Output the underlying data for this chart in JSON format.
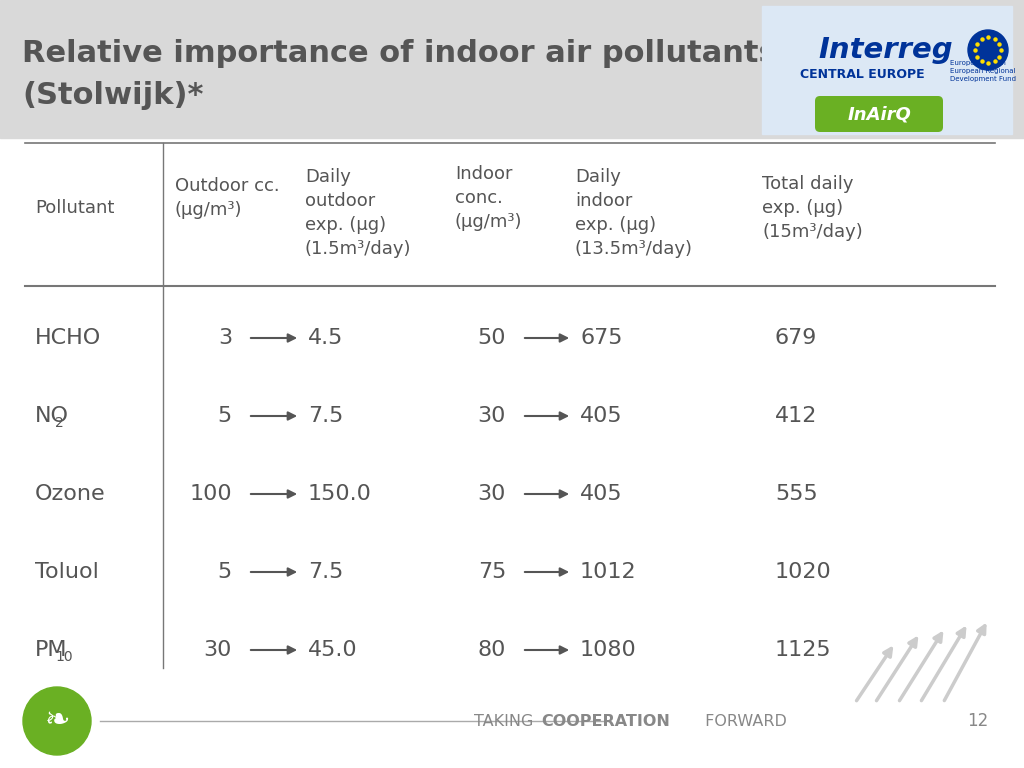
{
  "title_line1": "Relative importance of indoor air pollutants",
  "title_line2": "(Stolwijk)*",
  "title_color": "#555555",
  "header_bg": "#d9d9d9",
  "slide_bg": "#ffffff",
  "outdoor_cc": [
    "3",
    "5",
    "100",
    "5",
    "30"
  ],
  "daily_outdoor": [
    "4.5",
    "7.5",
    "150.0",
    "7.5",
    "45.0"
  ],
  "indoor_conc": [
    "50",
    "30",
    "30",
    "75",
    "80"
  ],
  "daily_indoor": [
    "675",
    "405",
    "405",
    "1012",
    "1080"
  ],
  "total_daily": [
    "679",
    "412",
    "555",
    "1020",
    "1125"
  ],
  "text_color": "#555555",
  "arrow_color": "#555555",
  "line_color": "#777777",
  "page_num": "12",
  "green_color": "#6ab023",
  "footer_line_color": "#aaaaaa",
  "logo_bg": "#dce8f5",
  "interreg_blue": "#003399",
  "eu_yellow": "#ffdd00"
}
